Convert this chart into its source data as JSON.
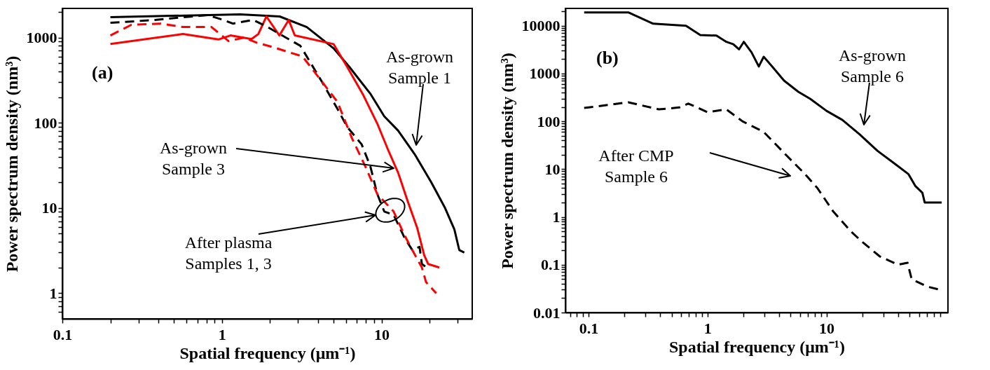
{
  "chart_data": [
    {
      "type": "line",
      "xlabel": "Spatial frequency (μm⁻¹)",
      "ylabel": "Power spectrum density (nm³)",
      "log": "xy",
      "xlim": [
        0.1,
        37
      ],
      "ylim": [
        0.5,
        2200
      ],
      "xticks": [
        0.1,
        {
          "value": 0.2,
          "label": null
        },
        {
          "value": 0.3,
          "label": null
        },
        {
          "value": 0.4,
          "label": null
        },
        {
          "value": 0.5,
          "label": null
        },
        {
          "value": 0.6,
          "label": null
        },
        {
          "value": 0.7,
          "label": null
        },
        {
          "value": 0.8,
          "label": null
        },
        {
          "value": 0.9,
          "label": null
        },
        1,
        {
          "value": 2,
          "label": null
        },
        {
          "value": 3,
          "label": null
        },
        {
          "value": 4,
          "label": null
        },
        {
          "value": 5,
          "label": null
        },
        {
          "value": 6,
          "label": null
        },
        {
          "value": 7,
          "label": null
        },
        {
          "value": 8,
          "label": null
        },
        {
          "value": 9,
          "label": null
        },
        10,
        {
          "value": 20,
          "label": null
        },
        {
          "value": 30,
          "label": null
        }
      ],
      "yticks": [
        {
          "value": 0.6,
          "label": null
        },
        {
          "value": 0.7,
          "label": null
        },
        {
          "value": 0.8,
          "label": null
        },
        {
          "value": 0.9,
          "label": null
        },
        1,
        {
          "value": 2,
          "label": null
        },
        {
          "value": 3,
          "label": null
        },
        {
          "value": 4,
          "label": null
        },
        {
          "value": 5,
          "label": null
        },
        {
          "value": 6,
          "label": null
        },
        {
          "value": 7,
          "label": null
        },
        {
          "value": 8,
          "label": null
        },
        {
          "value": 9,
          "label": null
        },
        10,
        {
          "value": 20,
          "label": null
        },
        {
          "value": 30,
          "label": null
        },
        {
          "value": 40,
          "label": null
        },
        {
          "value": 50,
          "label": null
        },
        {
          "value": 60,
          "label": null
        },
        {
          "value": 70,
          "label": null
        },
        {
          "value": 80,
          "label": null
        },
        {
          "value": 90,
          "label": null
        },
        100,
        {
          "value": 200,
          "label": null
        },
        {
          "value": 300,
          "label": null
        },
        {
          "value": 400,
          "label": null
        },
        {
          "value": 500,
          "label": null
        },
        {
          "value": 600,
          "label": null
        },
        {
          "value": 700,
          "label": null
        },
        {
          "value": 800,
          "label": null
        },
        {
          "value": 900,
          "label": null
        },
        1000,
        {
          "value": 2000,
          "label": null
        }
      ],
      "annotations": [
        "(a)",
        "As-grown\nSample 1",
        "As-grown\nSample 3",
        "After plasma\nSamples 1, 3"
      ],
      "series": [
        {
          "color": "#000000",
          "line_style": "solid",
          "x": [
            0.2,
            1.3,
            2.3,
            3.4,
            5,
            6.3,
            8.5,
            10.4,
            12.7,
            16.1,
            20.5,
            25,
            28.6,
            30.7,
            33
          ],
          "values": [
            1740,
            1870,
            1770,
            1330,
            750,
            450,
            220,
            119,
            81,
            43,
            20,
            10,
            5.6,
            3.2,
            3
          ]
        },
        {
          "color": "#ff0000",
          "line_style": "solid",
          "x": [
            0.2,
            0.57,
            0.95,
            1.13,
            1.53,
            1.69,
            1.9,
            2.29,
            2.62,
            2.86,
            5,
            6.1,
            7.7,
            9.4,
            11.1,
            12.7,
            14.5,
            16.7,
            18.5,
            19.6,
            23
          ],
          "values": [
            840,
            1100,
            950,
            1060,
            960,
            1100,
            1770,
            1060,
            1610,
            1060,
            840,
            450,
            210,
            98,
            46,
            26,
            12.4,
            5.9,
            2.8,
            2.2,
            2
          ]
        },
        {
          "color": "#000000",
          "line_style": "dashed",
          "x": [
            0.2,
            0.38,
            0.81,
            1.02,
            1.17,
            1.57,
            1.93,
            3.1,
            4.2,
            5.3,
            6.1,
            7.5,
            8.5,
            9.4,
            10.4,
            11.9,
            14,
            15.6,
            17.3,
            17.9,
            19.2
          ],
          "values": [
            1490,
            1610,
            1840,
            1610,
            1460,
            1610,
            1330,
            800,
            310,
            145,
            89,
            56,
            31,
            14.6,
            9.1,
            8.3,
            4.4,
            3.2,
            3.5,
            2.2,
            2
          ]
        },
        {
          "color": "#ff0000",
          "line_style": "dashed",
          "x": [
            0.2,
            0.27,
            0.41,
            0.57,
            0.86,
            1.1,
            1.38,
            1.64,
            2.1,
            3.2,
            4.2,
            5.3,
            6.5,
            7.9,
            9.4,
            11.9,
            14,
            15.6,
            17.9,
            19,
            22
          ],
          "values": [
            1060,
            1410,
            1460,
            1330,
            1330,
            910,
            1000,
            875,
            770,
            600,
            310,
            175,
            67,
            31,
            14.6,
            9.1,
            4.7,
            3.2,
            2,
            1.35,
            1
          ]
        }
      ]
    },
    {
      "type": "line",
      "xlabel": "Spatial frequency (μm⁻¹)",
      "ylabel": "Power spectrum density (nm³)",
      "log": "xy",
      "xlim": [
        0.064,
        105
      ],
      "ylim": [
        0.01,
        23000
      ],
      "xticks": [
        {
          "value": 0.07,
          "label": null
        },
        {
          "value": 0.08,
          "label": null
        },
        {
          "value": 0.09,
          "label": null
        },
        0.1,
        {
          "value": 0.2,
          "label": null
        },
        {
          "value": 0.3,
          "label": null
        },
        {
          "value": 0.4,
          "label": null
        },
        {
          "value": 0.5,
          "label": null
        },
        {
          "value": 0.6,
          "label": null
        },
        {
          "value": 0.7,
          "label": null
        },
        {
          "value": 0.8,
          "label": null
        },
        {
          "value": 0.9,
          "label": null
        },
        1,
        {
          "value": 2,
          "label": null
        },
        {
          "value": 3,
          "label": null
        },
        {
          "value": 4,
          "label": null
        },
        {
          "value": 5,
          "label": null
        },
        {
          "value": 6,
          "label": null
        },
        {
          "value": 7,
          "label": null
        },
        {
          "value": 8,
          "label": null
        },
        {
          "value": 9,
          "label": null
        },
        10,
        {
          "value": 20,
          "label": null
        },
        {
          "value": 30,
          "label": null
        },
        {
          "value": 40,
          "label": null
        },
        {
          "value": 50,
          "label": null
        },
        {
          "value": 60,
          "label": null
        },
        {
          "value": 70,
          "label": null
        },
        {
          "value": 80,
          "label": null
        },
        {
          "value": 90,
          "label": null
        }
      ],
      "yticks": [
        0.01,
        {
          "value": 0.02,
          "label": null
        },
        {
          "value": 0.03,
          "label": null
        },
        {
          "value": 0.04,
          "label": null
        },
        {
          "value": 0.05,
          "label": null
        },
        {
          "value": 0.06,
          "label": null
        },
        {
          "value": 0.07,
          "label": null
        },
        {
          "value": 0.08,
          "label": null
        },
        {
          "value": 0.09,
          "label": null
        },
        0.1,
        {
          "value": 0.2,
          "label": null
        },
        {
          "value": 0.3,
          "label": null
        },
        {
          "value": 0.4,
          "label": null
        },
        {
          "value": 0.5,
          "label": null
        },
        {
          "value": 0.6,
          "label": null
        },
        {
          "value": 0.7,
          "label": null
        },
        {
          "value": 0.8,
          "label": null
        },
        {
          "value": 0.9,
          "label": null
        },
        1,
        {
          "value": 2,
          "label": null
        },
        {
          "value": 3,
          "label": null
        },
        {
          "value": 4,
          "label": null
        },
        {
          "value": 5,
          "label": null
        },
        {
          "value": 6,
          "label": null
        },
        {
          "value": 7,
          "label": null
        },
        {
          "value": 8,
          "label": null
        },
        {
          "value": 9,
          "label": null
        },
        10,
        {
          "value": 20,
          "label": null
        },
        {
          "value": 30,
          "label": null
        },
        {
          "value": 40,
          "label": null
        },
        {
          "value": 50,
          "label": null
        },
        {
          "value": 60,
          "label": null
        },
        {
          "value": 70,
          "label": null
        },
        {
          "value": 80,
          "label": null
        },
        {
          "value": 90,
          "label": null
        },
        100,
        {
          "value": 200,
          "label": null
        },
        {
          "value": 300,
          "label": null
        },
        {
          "value": 400,
          "label": null
        },
        {
          "value": 500,
          "label": null
        },
        {
          "value": 600,
          "label": null
        },
        {
          "value": 700,
          "label": null
        },
        {
          "value": 800,
          "label": null
        },
        {
          "value": 900,
          "label": null
        },
        1000,
        {
          "value": 2000,
          "label": null
        },
        {
          "value": 3000,
          "label": null
        },
        {
          "value": 4000,
          "label": null
        },
        {
          "value": 5000,
          "label": null
        },
        {
          "value": 6000,
          "label": null
        },
        {
          "value": 7000,
          "label": null
        },
        {
          "value": 8000,
          "label": null
        },
        {
          "value": 9000,
          "label": null
        },
        10000,
        {
          "value": 20000,
          "label": null
        }
      ],
      "annotations": [
        "(b)",
        "As-grown\nSample 6",
        "After CMP\nSample 6"
      ],
      "series": [
        {
          "color": "#000000",
          "line_style": "solid",
          "x": [
            0.092,
            0.216,
            0.35,
            0.66,
            0.87,
            1.19,
            1.44,
            1.65,
            1.84,
            2.02,
            2.35,
            2.7,
            2.97,
            3.5,
            4.4,
            5.8,
            7.3,
            10,
            13.6,
            18.9,
            26.9,
            38.6,
            48.8,
            56,
            64,
            67,
            93
          ],
          "values": [
            19000,
            19000,
            11000,
            10000,
            6400,
            6200,
            4600,
            4100,
            3200,
            4600,
            2760,
            1400,
            2240,
            1400,
            710,
            415,
            295,
            166,
            107,
            54,
            24,
            12.3,
            7.9,
            4.4,
            3.2,
            2,
            2
          ]
        },
        {
          "color": "#000000",
          "line_style": "dashed",
          "x": [
            0.092,
            0.216,
            0.39,
            0.58,
            0.69,
            0.87,
            1,
            1.44,
            1.97,
            2.97,
            4.6,
            6.6,
            8.4,
            11.4,
            16,
            20,
            28,
            40,
            48,
            52,
            70,
            90
          ],
          "values": [
            190,
            250,
            178,
            195,
            235,
            182,
            155,
            178,
            100,
            60,
            19.5,
            7.9,
            4,
            1.3,
            0.5,
            0.3,
            0.15,
            0.1,
            0.11,
            0.05,
            0.035,
            0.03
          ]
        }
      ]
    }
  ]
}
